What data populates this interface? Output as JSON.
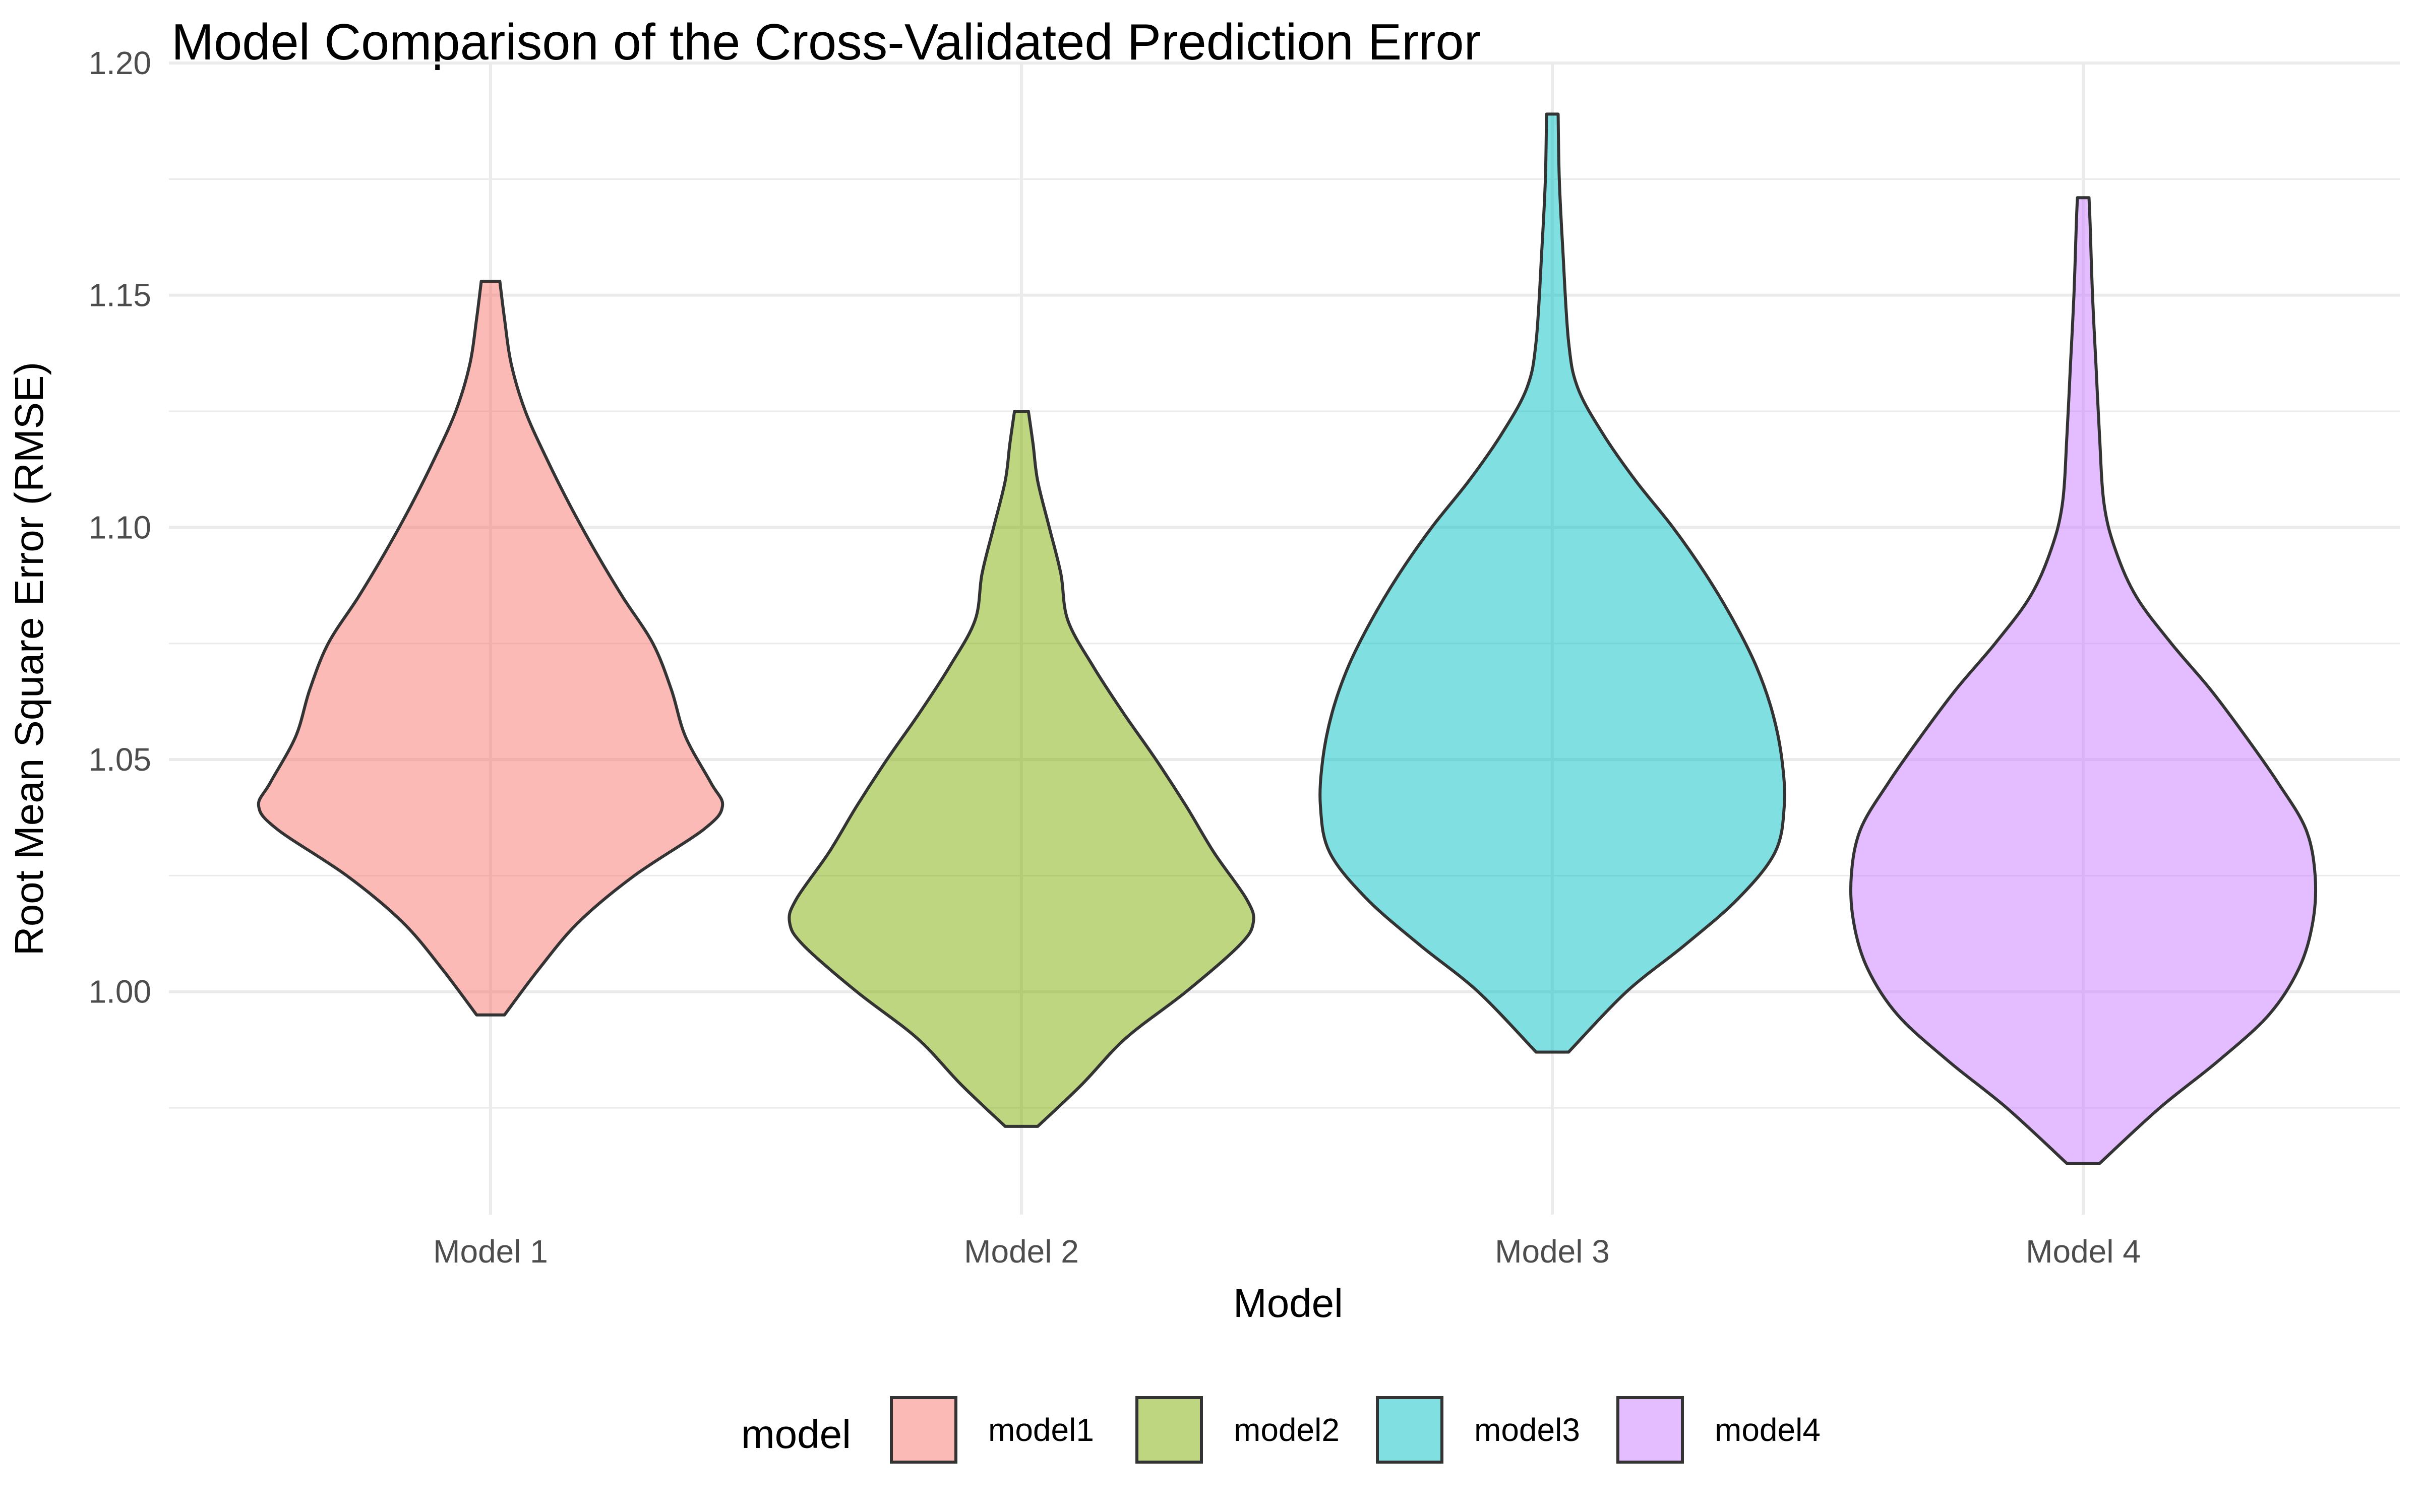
{
  "chart_data": {
    "type": "violin",
    "title": "Model Comparison of the Cross-Validated Prediction Error",
    "xlabel": "Model",
    "ylabel": "Root Mean Square Error (RMSE)",
    "categories": [
      "Model 1",
      "Model 2",
      "Model 3",
      "Model 4"
    ],
    "ylim": [
      0.952,
      1.2
    ],
    "yticks": [
      1.0,
      1.05,
      1.1,
      1.15,
      1.2
    ],
    "ytick_labels": [
      "1.00",
      "1.05",
      "1.10",
      "1.15",
      "1.20"
    ],
    "grid": true,
    "legend": {
      "title": "model",
      "position": "bottom",
      "entries": [
        "model1",
        "model2",
        "model3",
        "model4"
      ]
    },
    "series": [
      {
        "name": "model1",
        "category": "Model 1",
        "color": "#F8766D",
        "min": 0.995,
        "max": 1.153,
        "density": [
          [
            0.995,
            0.06
          ],
          [
            1.005,
            0.21
          ],
          [
            1.015,
            0.38
          ],
          [
            1.025,
            0.62
          ],
          [
            1.035,
            0.92
          ],
          [
            1.04,
            1.0
          ],
          [
            1.045,
            0.95
          ],
          [
            1.055,
            0.84
          ],
          [
            1.065,
            0.78
          ],
          [
            1.075,
            0.7
          ],
          [
            1.085,
            0.57
          ],
          [
            1.095,
            0.45
          ],
          [
            1.105,
            0.34
          ],
          [
            1.115,
            0.24
          ],
          [
            1.125,
            0.15
          ],
          [
            1.135,
            0.09
          ],
          [
            1.145,
            0.06
          ],
          [
            1.153,
            0.04
          ]
        ]
      },
      {
        "name": "model2",
        "category": "Model 2",
        "color": "#7CAE00",
        "min": 0.971,
        "max": 1.125,
        "density": [
          [
            0.971,
            0.07
          ],
          [
            0.98,
            0.26
          ],
          [
            0.99,
            0.45
          ],
          [
            1.0,
            0.71
          ],
          [
            1.01,
            0.94
          ],
          [
            1.015,
            1.0
          ],
          [
            1.02,
            0.97
          ],
          [
            1.03,
            0.83
          ],
          [
            1.04,
            0.71
          ],
          [
            1.05,
            0.58
          ],
          [
            1.06,
            0.44
          ],
          [
            1.07,
            0.31
          ],
          [
            1.08,
            0.2
          ],
          [
            1.09,
            0.17
          ],
          [
            1.1,
            0.12
          ],
          [
            1.11,
            0.07
          ],
          [
            1.118,
            0.05
          ],
          [
            1.125,
            0.03
          ]
        ]
      },
      {
        "name": "model3",
        "category": "Model 3",
        "color": "#00BFC4",
        "min": 0.987,
        "max": 1.189,
        "density": [
          [
            0.987,
            0.07
          ],
          [
            1.0,
            0.32
          ],
          [
            1.01,
            0.57
          ],
          [
            1.02,
            0.8
          ],
          [
            1.03,
            0.96
          ],
          [
            1.04,
            1.0
          ],
          [
            1.05,
            0.99
          ],
          [
            1.06,
            0.95
          ],
          [
            1.07,
            0.88
          ],
          [
            1.08,
            0.78
          ],
          [
            1.09,
            0.66
          ],
          [
            1.1,
            0.52
          ],
          [
            1.11,
            0.36
          ],
          [
            1.12,
            0.22
          ],
          [
            1.13,
            0.11
          ],
          [
            1.14,
            0.07
          ],
          [
            1.16,
            0.045
          ],
          [
            1.175,
            0.03
          ],
          [
            1.189,
            0.025
          ]
        ]
      },
      {
        "name": "model4",
        "category": "Model 4",
        "color": "#C77CFF",
        "min": 0.963,
        "max": 1.171,
        "density": [
          [
            0.963,
            0.07
          ],
          [
            0.975,
            0.33
          ],
          [
            0.985,
            0.58
          ],
          [
            0.995,
            0.8
          ],
          [
            1.005,
            0.93
          ],
          [
            1.015,
            0.99
          ],
          [
            1.025,
            1.0
          ],
          [
            1.035,
            0.96
          ],
          [
            1.045,
            0.84
          ],
          [
            1.055,
            0.7
          ],
          [
            1.065,
            0.55
          ],
          [
            1.075,
            0.38
          ],
          [
            1.085,
            0.23
          ],
          [
            1.095,
            0.14
          ],
          [
            1.105,
            0.09
          ],
          [
            1.12,
            0.07
          ],
          [
            1.135,
            0.055
          ],
          [
            1.15,
            0.04
          ],
          [
            1.165,
            0.03
          ],
          [
            1.171,
            0.025
          ]
        ]
      }
    ]
  }
}
